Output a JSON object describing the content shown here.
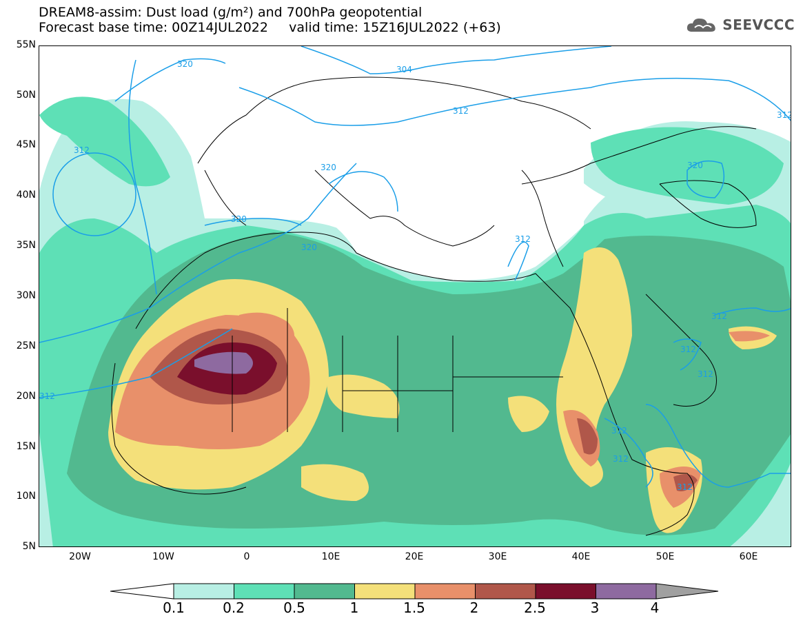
{
  "header": {
    "title_line1": "DREAM8-assim: Dust load (g/m²) and 700hPa geopotential",
    "title_line2": "Forecast base time: 00Z14JUL2022     valid time: 15Z16JUL2022 (+63)",
    "logo_text": "SEEVCCC"
  },
  "axes": {
    "lat_labels": [
      "55N",
      "50N",
      "45N",
      "40N",
      "35N",
      "30N",
      "25N",
      "20N",
      "15N",
      "10N",
      "5N"
    ],
    "lon_labels": [
      "20W",
      "10W",
      "0",
      "10E",
      "20E",
      "30E",
      "40E",
      "50E",
      "60E"
    ]
  },
  "contours": {
    "labels": [
      "320",
      "304",
      "312",
      "312",
      "320",
      "320",
      "320",
      "312",
      "320",
      "312",
      "312",
      "312",
      "312",
      "312",
      "312",
      "312",
      "312"
    ]
  },
  "colorbar": {
    "labels": [
      "0.1",
      "0.2",
      "0.5",
      "1",
      "1.5",
      "2",
      "2.5",
      "3",
      "4"
    ],
    "colors": [
      "#b8efe4",
      "#5ee0b6",
      "#52b98f",
      "#f4e07a",
      "#e8906a",
      "#b0574a",
      "#7a0f2c",
      "#8e6aa0"
    ]
  },
  "colors": {
    "land_outline": "#000000",
    "contour": "#1a9ee8",
    "sea": "#ffffff"
  }
}
